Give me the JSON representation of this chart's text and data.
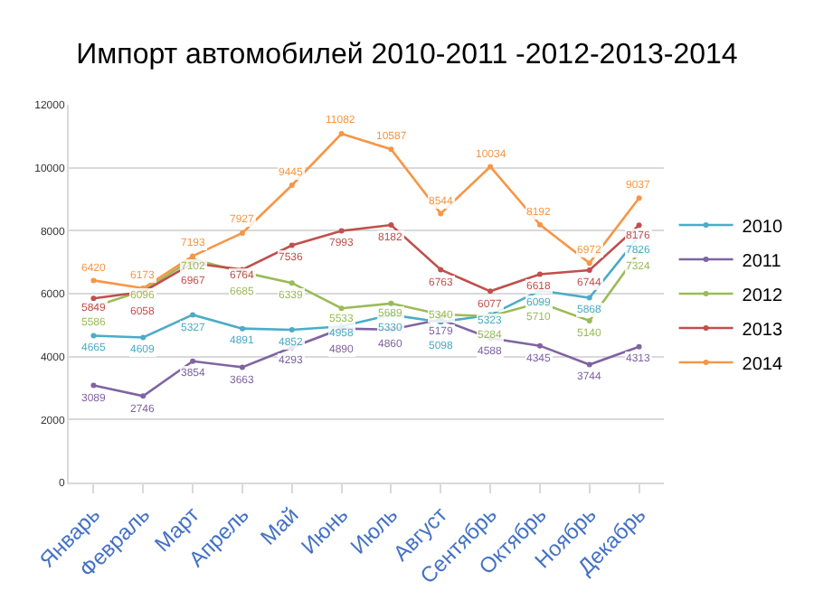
{
  "chart_data": {
    "type": "line",
    "title": "Импорт автомобилей 2010-2011 -2012-2013-2014",
    "categories": [
      "Январь",
      "Февраль",
      "Март",
      "Апрель",
      "Май",
      "Июнь",
      "Июль",
      "Август",
      "Сентябрь",
      "Октябрь",
      "Ноябрь",
      "Декабрь"
    ],
    "series": [
      {
        "name": "2010",
        "color": "#4bacc6",
        "values": [
          4665,
          4609,
          5327,
          4891,
          4852,
          4958,
          5330,
          5098,
          5323,
          6099,
          5868,
          7826
        ]
      },
      {
        "name": "2011",
        "color": "#8064a2",
        "values": [
          3089,
          2746,
          3854,
          3663,
          4293,
          4890,
          4860,
          5179,
          4588,
          4345,
          3744,
          4313
        ]
      },
      {
        "name": "2012",
        "color": "#9bbb59",
        "values": [
          5586,
          6096,
          7102,
          6685,
          6339,
          5533,
          5689,
          5340,
          5284,
          5710,
          5140,
          7324
        ]
      },
      {
        "name": "2013",
        "color": "#c0504d",
        "values": [
          5849,
          6058,
          6967,
          6764,
          7536,
          7993,
          8182,
          6763,
          6077,
          6618,
          6744,
          8176
        ]
      },
      {
        "name": "2014",
        "color": "#f79646",
        "values": [
          6420,
          6173,
          7193,
          7927,
          9445,
          11082,
          10587,
          8544,
          10034,
          8192,
          6972,
          9037
        ]
      }
    ],
    "ylim": [
      0,
      12000
    ],
    "yticks": [
      0,
      2000,
      4000,
      6000,
      8000,
      10000,
      12000
    ],
    "grid": "y",
    "legend": "right",
    "marker": "circle",
    "line_style": "solid",
    "data_labels": true
  }
}
